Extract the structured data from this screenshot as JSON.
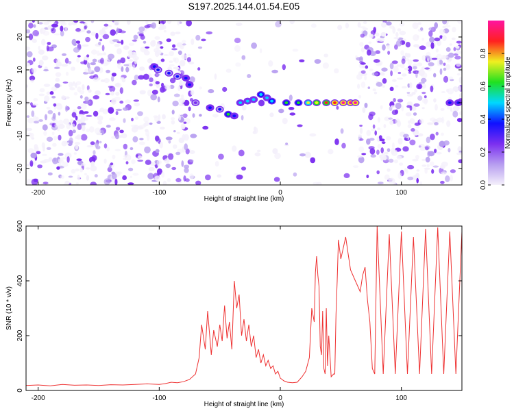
{
  "title": "S197.2025.144.01.54.E05",
  "colors": {
    "snr_line": "#ee3030",
    "axis": "#000000",
    "colorbar": [
      "#f4f0fb",
      "#b79ef0",
      "#7b2ff0",
      "#1010ff",
      "#00d8ff",
      "#20e020",
      "#f0f020",
      "#ff2020",
      "#ff14a0"
    ]
  },
  "chart_data": [
    {
      "type": "heatmap",
      "name": "spectrogram",
      "xlabel": "Height of straight line (km)",
      "ylabel": "Frequency (Hz)",
      "xlim": [
        -210,
        150
      ],
      "ylim": [
        -25,
        25
      ],
      "x_ticks": [
        -200,
        -100,
        0,
        100
      ],
      "x_tick_labels": [
        "-200",
        "-100",
        "0",
        "100"
      ],
      "y_ticks": [
        -20,
        -10,
        0,
        10,
        20
      ],
      "y_tick_labels": [
        "-20",
        "-10",
        "0",
        "10",
        "20"
      ],
      "colorbar": {
        "label": "Normalized spectral amplitude",
        "range": [
          0,
          1
        ],
        "ticks": [
          0.0,
          0.2,
          0.4,
          0.6,
          0.8
        ],
        "tick_labels": [
          "0.0",
          "0.2",
          "0.4",
          "0.6",
          "0.8"
        ]
      },
      "track": [
        {
          "x": -104,
          "y": 11,
          "v": 0.3
        },
        {
          "x": -101,
          "y": 10,
          "v": 0.28
        },
        {
          "x": -92,
          "y": 9,
          "v": 0.25
        },
        {
          "x": -85,
          "y": 8,
          "v": 0.22
        },
        {
          "x": -78,
          "y": 7.5,
          "v": 0.3
        },
        {
          "x": -75,
          "y": 5.5,
          "v": 0.3
        },
        {
          "x": -70,
          "y": 0,
          "v": 0.2
        },
        {
          "x": -58,
          "y": -1.5,
          "v": 0.3
        },
        {
          "x": -50,
          "y": -2,
          "v": 0.28
        },
        {
          "x": -43,
          "y": -3.5,
          "v": 0.5
        },
        {
          "x": -38,
          "y": -4,
          "v": 0.3
        },
        {
          "x": -33,
          "y": 0,
          "v": 0.4
        },
        {
          "x": -27,
          "y": 0.5,
          "v": 0.38
        },
        {
          "x": -22,
          "y": 1,
          "v": 0.4
        },
        {
          "x": -16,
          "y": 2.5,
          "v": 0.42
        },
        {
          "x": -11,
          "y": 1.5,
          "v": 0.38
        },
        {
          "x": -7,
          "y": 0.5,
          "v": 0.45
        },
        {
          "x": 5,
          "y": 0,
          "v": 0.5
        },
        {
          "x": 15,
          "y": 0,
          "v": 0.5
        },
        {
          "x": 23,
          "y": 0,
          "v": 0.62
        },
        {
          "x": 30,
          "y": 0,
          "v": 0.7
        },
        {
          "x": 38,
          "y": 0,
          "v": 0.78
        },
        {
          "x": 45,
          "y": 0,
          "v": 0.82
        },
        {
          "x": 52,
          "y": 0,
          "v": 0.85
        },
        {
          "x": 58,
          "y": 0,
          "v": 0.9
        },
        {
          "x": 62,
          "y": 0,
          "v": 0.9
        },
        {
          "x": 140,
          "y": 0,
          "v": 0.3
        },
        {
          "x": 147,
          "y": 0,
          "v": 0.3
        }
      ],
      "noise_regions": [
        {
          "x_from": -210,
          "x_to": -72,
          "density": 0.9
        },
        {
          "x_from": -72,
          "x_to": 65,
          "density": 0.12
        },
        {
          "x_from": 65,
          "x_to": 150,
          "density": 0.85
        }
      ]
    },
    {
      "type": "line",
      "name": "snr",
      "xlabel": "Height of straight line (km)",
      "ylabel": "SNR (10 * v/v)",
      "xlim": [
        -210,
        150
      ],
      "ylim": [
        0,
        600
      ],
      "x_ticks": [
        -200,
        -100,
        0,
        100
      ],
      "x_tick_labels": [
        "-200",
        "-100",
        "0",
        "100"
      ],
      "y_ticks": [
        0,
        200,
        400,
        600
      ],
      "y_tick_labels": [
        "0",
        "200",
        "400",
        "600"
      ],
      "x": [
        -210,
        -200,
        -190,
        -180,
        -170,
        -160,
        -150,
        -140,
        -130,
        -120,
        -110,
        -100,
        -95,
        -90,
        -85,
        -80,
        -75,
        -70,
        -67,
        -65,
        -62,
        -60,
        -57,
        -55,
        -52,
        -50,
        -48,
        -46,
        -44,
        -42,
        -40,
        -38,
        -36,
        -34,
        -32,
        -30,
        -28,
        -26,
        -24,
        -22,
        -20,
        -18,
        -16,
        -14,
        -12,
        -10,
        -8,
        -6,
        -4,
        -2,
        0,
        3,
        6,
        10,
        14,
        18,
        21,
        24,
        26,
        28,
        29,
        30,
        31,
        32,
        33,
        34,
        35,
        36,
        37,
        38,
        39,
        40,
        41,
        42,
        43,
        44,
        45,
        46,
        47,
        48,
        50,
        52,
        54,
        56,
        58,
        60,
        62,
        64,
        66,
        68,
        70,
        72,
        74,
        76,
        78,
        80,
        85,
        90,
        95,
        100,
        105,
        110,
        115,
        120,
        125,
        130,
        135,
        140,
        145,
        150
      ],
      "y": [
        18,
        20,
        17,
        22,
        19,
        20,
        18,
        21,
        20,
        22,
        24,
        22,
        25,
        30,
        28,
        32,
        40,
        60,
        120,
        240,
        150,
        290,
        130,
        220,
        160,
        240,
        180,
        310,
        190,
        250,
        150,
        400,
        300,
        350,
        200,
        260,
        180,
        240,
        160,
        200,
        120,
        150,
        100,
        130,
        90,
        110,
        80,
        90,
        60,
        70,
        45,
        35,
        30,
        28,
        30,
        50,
        70,
        120,
        300,
        250,
        430,
        490,
        420,
        380,
        160,
        130,
        290,
        80,
        60,
        300,
        90,
        200,
        130,
        50,
        55,
        60,
        60,
        280,
        400,
        550,
        480,
        520,
        560,
        500,
        440,
        420,
        400,
        380,
        360,
        420,
        450,
        330,
        250,
        80,
        60,
        600,
        60,
        570,
        60,
        580,
        60,
        560,
        60,
        590,
        60,
        595,
        60,
        580,
        60,
        580
      ]
    }
  ]
}
